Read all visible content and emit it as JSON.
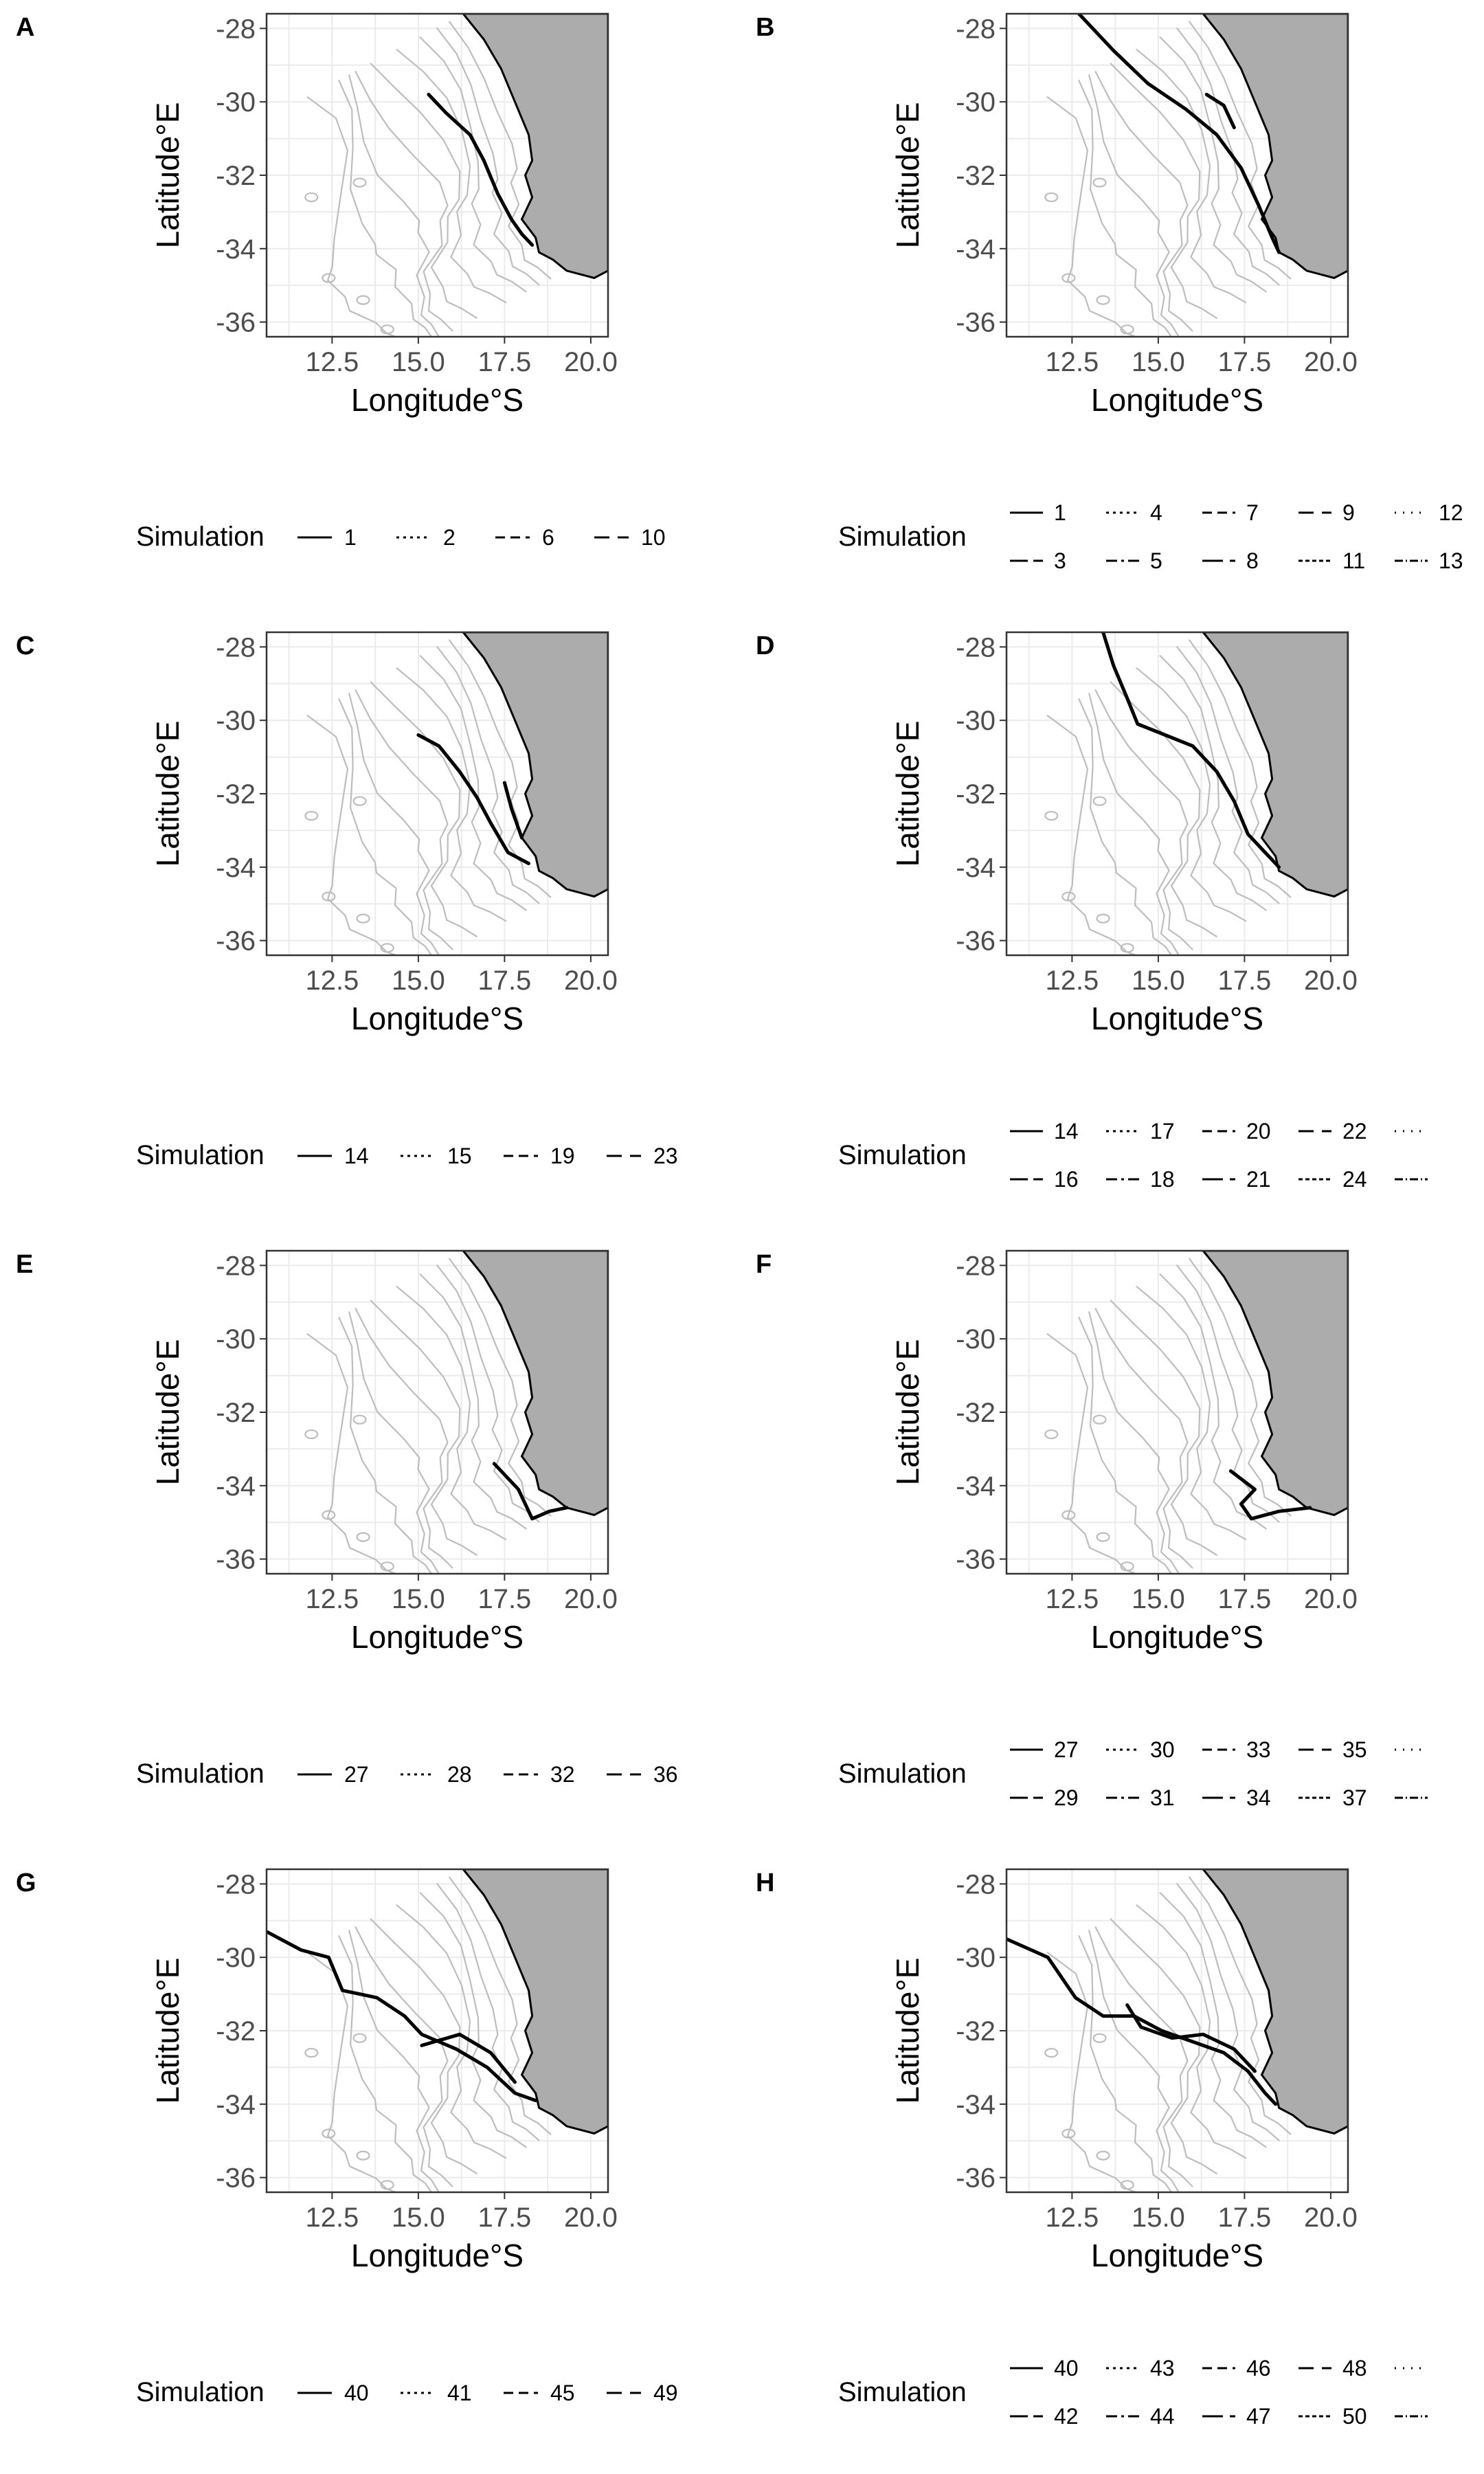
{
  "chart_data": [
    {
      "type": "line",
      "panel": "A",
      "xlabel": "Longitude°S",
      "ylabel": "Latitude°E",
      "xlim": [
        10.6,
        20.5
      ],
      "ylim": [
        -36.4,
        -27.6
      ],
      "xticks": [
        "12.5",
        "15.0",
        "17.5",
        "20.0"
      ],
      "yticks": [
        "-28",
        "-30",
        "-32",
        "-34",
        "-36"
      ],
      "legend_title": "Simulation",
      "legend": [
        "1",
        "2",
        "6",
        "10"
      ],
      "series": [
        {
          "values": [
            [
              15.3,
              -29.8
            ],
            [
              15.8,
              -30.3
            ],
            [
              16.5,
              -30.9
            ],
            [
              16.9,
              -31.6
            ],
            [
              17.3,
              -32.5
            ],
            [
              17.7,
              -33.2
            ],
            [
              18.0,
              -33.6
            ],
            [
              18.3,
              -33.9
            ]
          ]
        }
      ]
    },
    {
      "type": "line",
      "panel": "B",
      "xlabel": "Longitude°S",
      "ylabel": "Latitude°E",
      "xlim": [
        10.6,
        20.5
      ],
      "ylim": [
        -36.4,
        -27.6
      ],
      "xticks": [
        "12.5",
        "15.0",
        "17.5",
        "20.0"
      ],
      "yticks": [
        "-28",
        "-30",
        "-32",
        "-34",
        "-36"
      ],
      "legend_title": "Simulation",
      "legend": [
        "1",
        "4",
        "7",
        "9",
        "12",
        "3",
        "5",
        "8",
        "11",
        "13"
      ],
      "series": [
        {
          "values": [
            [
              12.7,
              -27.6
            ],
            [
              13.7,
              -28.6
            ],
            [
              14.7,
              -29.5
            ],
            [
              15.8,
              -30.2
            ],
            [
              16.7,
              -30.9
            ],
            [
              17.4,
              -31.8
            ],
            [
              17.9,
              -32.8
            ],
            [
              18.3,
              -33.7
            ],
            [
              18.5,
              -34.1
            ]
          ]
        },
        {
          "values": [
            [
              16.4,
              -29.8
            ],
            [
              16.9,
              -30.1
            ],
            [
              17.2,
              -30.7
            ]
          ]
        }
      ]
    },
    {
      "type": "line",
      "panel": "C",
      "xlabel": "Longitude°S",
      "ylabel": "Latitude°E",
      "xlim": [
        10.6,
        20.5
      ],
      "ylim": [
        -36.4,
        -27.6
      ],
      "xticks": [
        "12.5",
        "15.0",
        "17.5",
        "20.0"
      ],
      "yticks": [
        "-28",
        "-30",
        "-32",
        "-34",
        "-36"
      ],
      "legend_title": "Simulation",
      "legend": [
        "14",
        "15",
        "19",
        "23"
      ],
      "series": [
        {
          "values": [
            [
              15.0,
              -30.4
            ],
            [
              15.6,
              -30.7
            ],
            [
              16.2,
              -31.4
            ],
            [
              16.7,
              -32.1
            ],
            [
              17.1,
              -32.8
            ],
            [
              17.6,
              -33.6
            ],
            [
              18.2,
              -33.9
            ]
          ]
        },
        {
          "values": [
            [
              17.5,
              -31.7
            ],
            [
              17.7,
              -32.4
            ],
            [
              18.0,
              -33.2
            ]
          ]
        }
      ]
    },
    {
      "type": "line",
      "panel": "D",
      "xlabel": "Longitude°S",
      "ylabel": "Latitude°E",
      "xlim": [
        10.6,
        20.5
      ],
      "ylim": [
        -36.4,
        -27.6
      ],
      "xticks": [
        "12.5",
        "15.0",
        "17.5",
        "20.0"
      ],
      "yticks": [
        "-28",
        "-30",
        "-32",
        "-34",
        "-36"
      ],
      "legend_title": "Simulation",
      "legend": [
        "14",
        "17",
        "20",
        "22",
        "",
        "16",
        "18",
        "21",
        "24",
        ""
      ],
      "series": [
        {
          "values": [
            [
              13.4,
              -27.6
            ],
            [
              13.7,
              -28.5
            ],
            [
              14.1,
              -29.4
            ],
            [
              14.4,
              -30.1
            ],
            [
              15.2,
              -30.4
            ],
            [
              16.0,
              -30.7
            ],
            [
              16.7,
              -31.4
            ],
            [
              17.2,
              -32.2
            ],
            [
              17.6,
              -33.1
            ],
            [
              18.1,
              -33.6
            ],
            [
              18.5,
              -34.0
            ]
          ]
        }
      ]
    },
    {
      "type": "line",
      "panel": "E",
      "xlabel": "Longitude°S",
      "ylabel": "Latitude°E",
      "xlim": [
        10.6,
        20.5
      ],
      "ylim": [
        -36.4,
        -27.6
      ],
      "xticks": [
        "12.5",
        "15.0",
        "17.5",
        "20.0"
      ],
      "yticks": [
        "-28",
        "-30",
        "-32",
        "-34",
        "-36"
      ],
      "legend_title": "Simulation",
      "legend": [
        "27",
        "28",
        "32",
        "36"
      ],
      "series": [
        {
          "values": [
            [
              17.2,
              -33.4
            ],
            [
              17.9,
              -34.1
            ],
            [
              18.3,
              -34.9
            ],
            [
              18.8,
              -34.7
            ],
            [
              19.3,
              -34.6
            ]
          ]
        }
      ]
    },
    {
      "type": "line",
      "panel": "F",
      "xlabel": "Longitude°S",
      "ylabel": "Latitude°E",
      "xlim": [
        10.6,
        20.5
      ],
      "ylim": [
        -36.4,
        -27.6
      ],
      "xticks": [
        "12.5",
        "15.0",
        "17.5",
        "20.0"
      ],
      "yticks": [
        "-28",
        "-30",
        "-32",
        "-34",
        "-36"
      ],
      "legend_title": "Simulation",
      "legend": [
        "27",
        "30",
        "33",
        "35",
        "",
        "29",
        "31",
        "34",
        "37",
        ""
      ],
      "series": [
        {
          "values": [
            [
              17.1,
              -33.6
            ],
            [
              17.8,
              -34.1
            ],
            [
              17.4,
              -34.5
            ],
            [
              17.7,
              -34.9
            ],
            [
              18.5,
              -34.7
            ],
            [
              19.4,
              -34.6
            ]
          ]
        }
      ]
    },
    {
      "type": "line",
      "panel": "G",
      "xlabel": "Longitude°S",
      "ylabel": "Latitude°E",
      "xlim": [
        10.6,
        20.5
      ],
      "ylim": [
        -36.4,
        -27.6
      ],
      "xticks": [
        "12.5",
        "15.0",
        "17.5",
        "20.0"
      ],
      "yticks": [
        "-28",
        "-30",
        "-32",
        "-34",
        "-36"
      ],
      "legend_title": "Simulation",
      "legend": [
        "40",
        "41",
        "45",
        "49"
      ],
      "series": [
        {
          "values": [
            [
              10.6,
              -29.3
            ],
            [
              11.6,
              -29.8
            ],
            [
              12.4,
              -30.0
            ],
            [
              12.8,
              -30.9
            ],
            [
              13.8,
              -31.1
            ],
            [
              14.6,
              -31.6
            ],
            [
              15.1,
              -32.1
            ],
            [
              16.1,
              -32.5
            ],
            [
              17.0,
              -33.0
            ],
            [
              17.8,
              -33.7
            ],
            [
              18.4,
              -33.9
            ]
          ]
        },
        {
          "values": [
            [
              15.1,
              -32.4
            ],
            [
              16.2,
              -32.1
            ],
            [
              17.1,
              -32.6
            ],
            [
              17.8,
              -33.4
            ]
          ]
        }
      ]
    },
    {
      "type": "line",
      "panel": "H",
      "xlabel": "Longitude°S",
      "ylabel": "Latitude°E",
      "xlim": [
        10.6,
        20.5
      ],
      "ylim": [
        -36.4,
        -27.6
      ],
      "xticks": [
        "12.5",
        "15.0",
        "17.5",
        "20.0"
      ],
      "yticks": [
        "-28",
        "-30",
        "-32",
        "-34",
        "-36"
      ],
      "legend_title": "Simulation",
      "legend": [
        "40",
        "43",
        "46",
        "48",
        "",
        "42",
        "44",
        "47",
        "50",
        ""
      ],
      "series": [
        {
          "values": [
            [
              10.6,
              -29.5
            ],
            [
              11.8,
              -30.0
            ],
            [
              12.6,
              -31.1
            ],
            [
              13.4,
              -31.6
            ],
            [
              14.3,
              -31.6
            ],
            [
              15.1,
              -32.0
            ],
            [
              16.0,
              -32.3
            ],
            [
              16.9,
              -32.6
            ],
            [
              17.6,
              -33.1
            ],
            [
              18.1,
              -33.7
            ],
            [
              18.4,
              -34.0
            ]
          ]
        },
        {
          "values": [
            [
              14.1,
              -31.3
            ],
            [
              14.5,
              -31.9
            ],
            [
              15.4,
              -32.2
            ],
            [
              16.3,
              -32.1
            ],
            [
              17.2,
              -32.5
            ],
            [
              17.8,
              -33.1
            ]
          ]
        }
      ]
    }
  ]
}
